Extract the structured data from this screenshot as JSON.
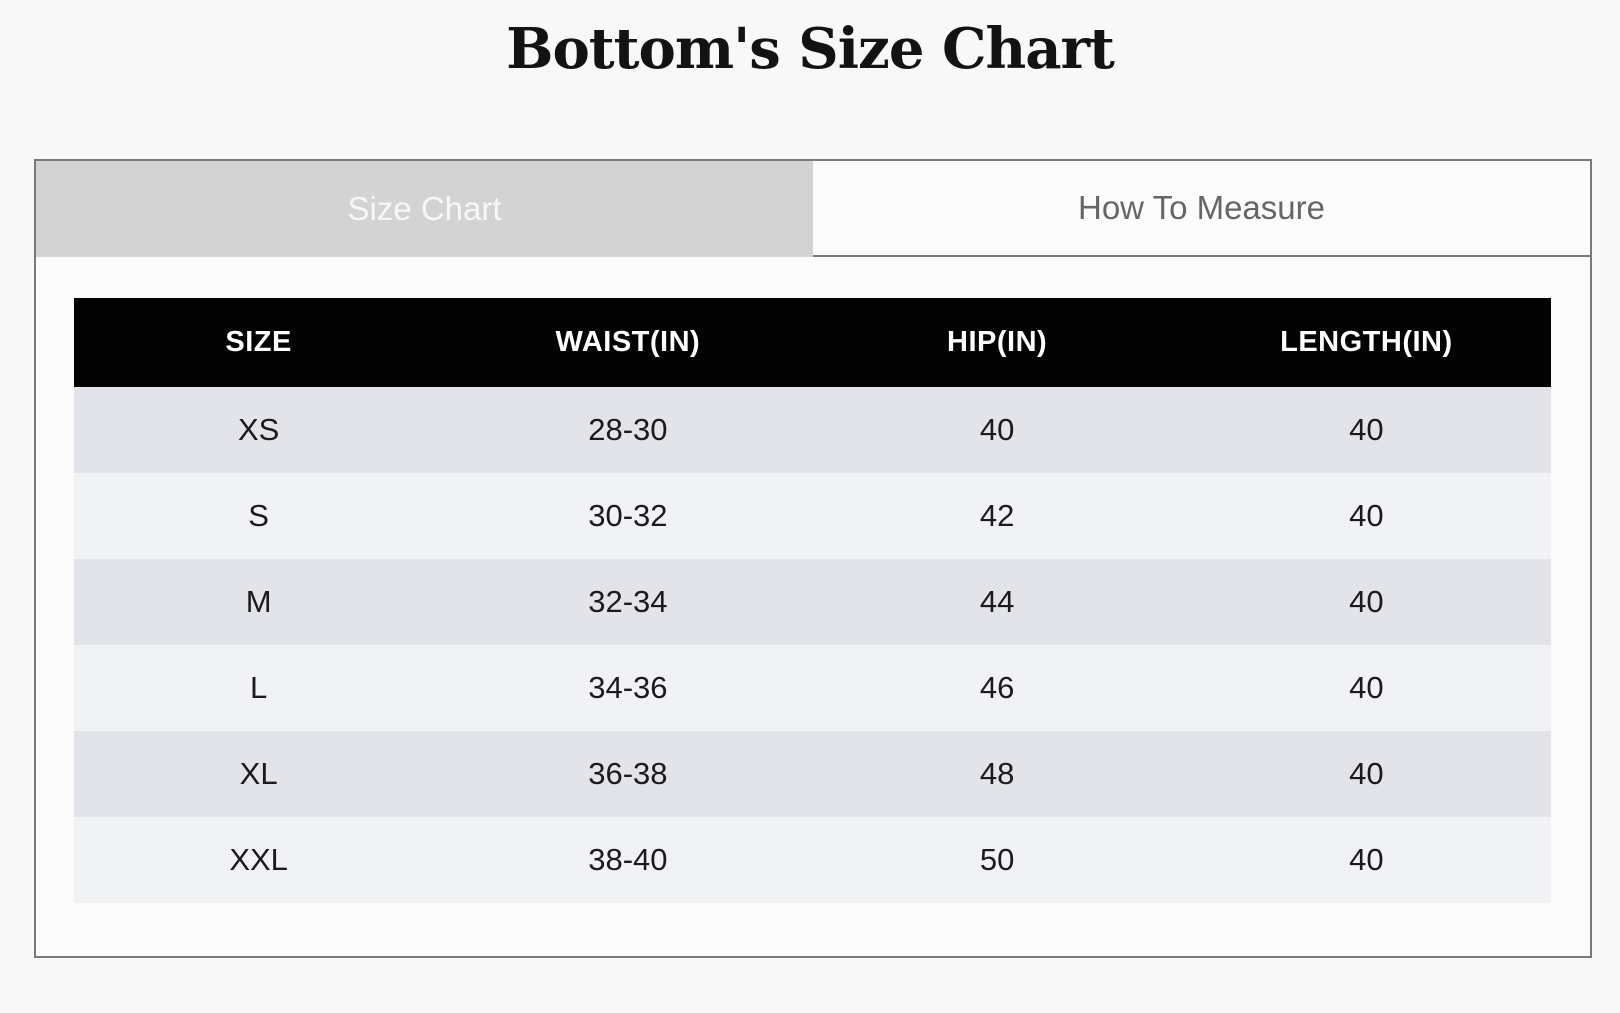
{
  "page": {
    "title": "Bottom's Size Chart"
  },
  "tabs": [
    {
      "label": "Size Chart",
      "active": true
    },
    {
      "label": "How To Measure",
      "active": false
    }
  ],
  "size_table": {
    "columns": [
      "SIZE",
      "WAIST(IN)",
      "HIP(IN)",
      "LENGTH(IN)"
    ],
    "rows": [
      [
        "XS",
        "28-30",
        "40",
        "40"
      ],
      [
        "S",
        "30-32",
        "42",
        "40"
      ],
      [
        "M",
        "32-34",
        "44",
        "40"
      ],
      [
        "L",
        "34-36",
        "46",
        "40"
      ],
      [
        "XL",
        "36-38",
        "48",
        "40"
      ],
      [
        "XXL",
        "38-40",
        "50",
        "40"
      ]
    ]
  },
  "colors": {
    "page_background": "#f8f8f8",
    "panel_border": "#7a7a7a",
    "active_tab_background": "#d3d3d3",
    "active_tab_text": "#f7f7f7",
    "inactive_tab_background": "#fcfcfc",
    "inactive_tab_text": "#666666",
    "table_header_background": "#030303",
    "table_header_text": "#ffffff",
    "row_dark": "#e2e4e9",
    "row_light": "#f1f2f4"
  }
}
